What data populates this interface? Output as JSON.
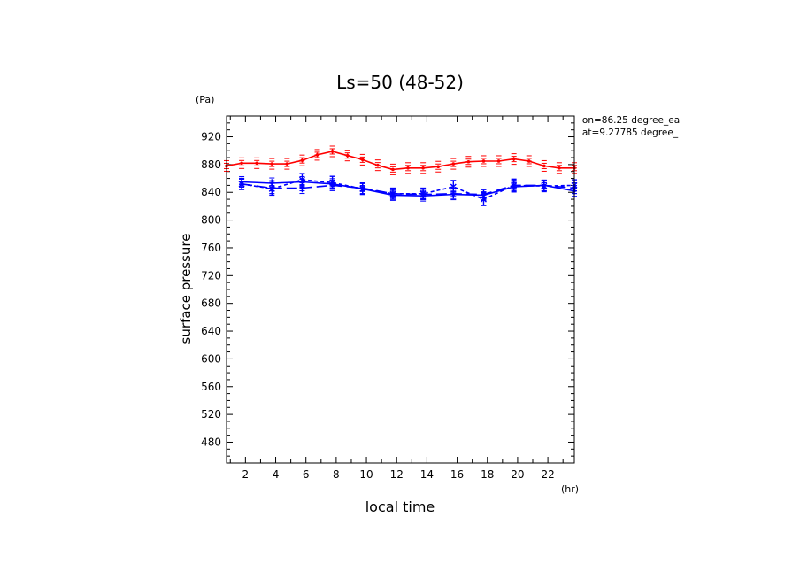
{
  "chart_data": {
    "type": "line",
    "title": "Ls=50 (48-52)",
    "xlabel": "local time",
    "ylabel": "surface pressure",
    "x_unit": "(hr)",
    "y_unit": "(Pa)",
    "annotations": [
      "lon=86.25 degree_ea",
      "lat=9.27785 degree_"
    ],
    "xlim": [
      0.75,
      23.75
    ],
    "ylim": [
      450,
      950
    ],
    "x_ticks": [
      2,
      4,
      6,
      8,
      10,
      12,
      14,
      16,
      18,
      20,
      22
    ],
    "y_ticks": [
      480,
      520,
      560,
      600,
      640,
      680,
      720,
      760,
      800,
      840,
      880,
      920
    ],
    "grid": false,
    "series": [
      {
        "color": "#ff0000",
        "style": "solid",
        "marker": "bar",
        "x": [
          0.75,
          1.75,
          2.75,
          3.75,
          4.75,
          5.75,
          6.75,
          7.75,
          8.75,
          9.75,
          10.75,
          11.75,
          12.75,
          13.75,
          14.75,
          15.75,
          16.75,
          17.75,
          18.75,
          19.75,
          20.75,
          21.75,
          22.75,
          23.75
        ],
        "y": [
          878,
          882,
          882,
          881,
          881,
          886,
          894,
          899,
          893,
          887,
          879,
          873,
          875,
          875,
          877,
          881,
          884,
          885,
          885,
          888,
          885,
          878,
          875,
          875
        ],
        "err": [
          2,
          2,
          2,
          2,
          2,
          3,
          3,
          4,
          3,
          3,
          2,
          2,
          2,
          2,
          2,
          2,
          2,
          2,
          2,
          3,
          2,
          2,
          2,
          2
        ]
      },
      {
        "color": "#0000ff",
        "style": "solid",
        "marker": "bar",
        "x": [
          1.75,
          3.75,
          5.75,
          7.75,
          9.75,
          11.75,
          13.75,
          15.75,
          17.75,
          19.75,
          21.75,
          23.75
        ],
        "y": [
          855,
          853,
          855,
          852,
          845,
          836,
          835,
          837,
          836,
          848,
          850,
          842
        ],
        "err": [
          6,
          6,
          6,
          6,
          6,
          6,
          6,
          6,
          6,
          6,
          6,
          6
        ]
      },
      {
        "color": "#0000ff",
        "style": "dashed",
        "marker": "cross",
        "x": [
          1.75,
          3.75,
          5.75,
          7.75,
          9.75,
          11.75,
          13.75,
          15.75,
          17.75,
          19.75,
          21.75,
          23.75
        ],
        "y": [
          852,
          845,
          858,
          854,
          845,
          838,
          838,
          848,
          830,
          850,
          849,
          850
        ],
        "err": [
          8,
          9,
          9,
          9,
          8,
          8,
          8,
          9,
          9,
          9,
          8,
          8
        ]
      },
      {
        "color": "#0000ff",
        "style": "longdash",
        "marker": "bar",
        "x": [
          1.75,
          3.75,
          5.75,
          7.75,
          9.75,
          11.75,
          13.75,
          15.75,
          17.75,
          19.75,
          21.75,
          23.75
        ],
        "y": [
          852,
          846,
          846,
          850,
          846,
          838,
          837,
          838,
          837,
          850,
          850,
          846
        ],
        "err": [
          6,
          6,
          6,
          6,
          6,
          6,
          6,
          6,
          6,
          6,
          6,
          6
        ]
      }
    ]
  }
}
